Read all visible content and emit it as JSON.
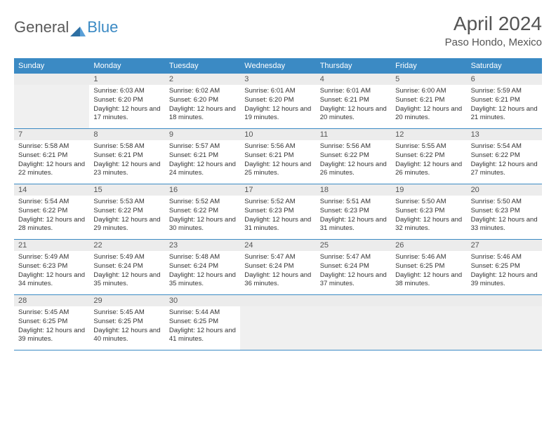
{
  "brand": {
    "part1": "General",
    "part2": "Blue"
  },
  "title": "April 2024",
  "location": "Paso Hondo, Mexico",
  "colors": {
    "header_bg": "#3b8ac4",
    "header_fg": "#ffffff",
    "daynum_bg": "#ececec",
    "text": "#333333",
    "border": "#3b8ac4"
  },
  "day_names": [
    "Sunday",
    "Monday",
    "Tuesday",
    "Wednesday",
    "Thursday",
    "Friday",
    "Saturday"
  ],
  "weeks": [
    [
      null,
      {
        "n": "1",
        "sr": "6:03 AM",
        "ss": "6:20 PM",
        "dl": "12 hours and 17 minutes."
      },
      {
        "n": "2",
        "sr": "6:02 AM",
        "ss": "6:20 PM",
        "dl": "12 hours and 18 minutes."
      },
      {
        "n": "3",
        "sr": "6:01 AM",
        "ss": "6:20 PM",
        "dl": "12 hours and 19 minutes."
      },
      {
        "n": "4",
        "sr": "6:01 AM",
        "ss": "6:21 PM",
        "dl": "12 hours and 20 minutes."
      },
      {
        "n": "5",
        "sr": "6:00 AM",
        "ss": "6:21 PM",
        "dl": "12 hours and 20 minutes."
      },
      {
        "n": "6",
        "sr": "5:59 AM",
        "ss": "6:21 PM",
        "dl": "12 hours and 21 minutes."
      }
    ],
    [
      {
        "n": "7",
        "sr": "5:58 AM",
        "ss": "6:21 PM",
        "dl": "12 hours and 22 minutes."
      },
      {
        "n": "8",
        "sr": "5:58 AM",
        "ss": "6:21 PM",
        "dl": "12 hours and 23 minutes."
      },
      {
        "n": "9",
        "sr": "5:57 AM",
        "ss": "6:21 PM",
        "dl": "12 hours and 24 minutes."
      },
      {
        "n": "10",
        "sr": "5:56 AM",
        "ss": "6:21 PM",
        "dl": "12 hours and 25 minutes."
      },
      {
        "n": "11",
        "sr": "5:56 AM",
        "ss": "6:22 PM",
        "dl": "12 hours and 26 minutes."
      },
      {
        "n": "12",
        "sr": "5:55 AM",
        "ss": "6:22 PM",
        "dl": "12 hours and 26 minutes."
      },
      {
        "n": "13",
        "sr": "5:54 AM",
        "ss": "6:22 PM",
        "dl": "12 hours and 27 minutes."
      }
    ],
    [
      {
        "n": "14",
        "sr": "5:54 AM",
        "ss": "6:22 PM",
        "dl": "12 hours and 28 minutes."
      },
      {
        "n": "15",
        "sr": "5:53 AM",
        "ss": "6:22 PM",
        "dl": "12 hours and 29 minutes."
      },
      {
        "n": "16",
        "sr": "5:52 AM",
        "ss": "6:22 PM",
        "dl": "12 hours and 30 minutes."
      },
      {
        "n": "17",
        "sr": "5:52 AM",
        "ss": "6:23 PM",
        "dl": "12 hours and 31 minutes."
      },
      {
        "n": "18",
        "sr": "5:51 AM",
        "ss": "6:23 PM",
        "dl": "12 hours and 31 minutes."
      },
      {
        "n": "19",
        "sr": "5:50 AM",
        "ss": "6:23 PM",
        "dl": "12 hours and 32 minutes."
      },
      {
        "n": "20",
        "sr": "5:50 AM",
        "ss": "6:23 PM",
        "dl": "12 hours and 33 minutes."
      }
    ],
    [
      {
        "n": "21",
        "sr": "5:49 AM",
        "ss": "6:23 PM",
        "dl": "12 hours and 34 minutes."
      },
      {
        "n": "22",
        "sr": "5:49 AM",
        "ss": "6:24 PM",
        "dl": "12 hours and 35 minutes."
      },
      {
        "n": "23",
        "sr": "5:48 AM",
        "ss": "6:24 PM",
        "dl": "12 hours and 35 minutes."
      },
      {
        "n": "24",
        "sr": "5:47 AM",
        "ss": "6:24 PM",
        "dl": "12 hours and 36 minutes."
      },
      {
        "n": "25",
        "sr": "5:47 AM",
        "ss": "6:24 PM",
        "dl": "12 hours and 37 minutes."
      },
      {
        "n": "26",
        "sr": "5:46 AM",
        "ss": "6:25 PM",
        "dl": "12 hours and 38 minutes."
      },
      {
        "n": "27",
        "sr": "5:46 AM",
        "ss": "6:25 PM",
        "dl": "12 hours and 39 minutes."
      }
    ],
    [
      {
        "n": "28",
        "sr": "5:45 AM",
        "ss": "6:25 PM",
        "dl": "12 hours and 39 minutes."
      },
      {
        "n": "29",
        "sr": "5:45 AM",
        "ss": "6:25 PM",
        "dl": "12 hours and 40 minutes."
      },
      {
        "n": "30",
        "sr": "5:44 AM",
        "ss": "6:25 PM",
        "dl": "12 hours and 41 minutes."
      },
      null,
      null,
      null,
      null
    ]
  ],
  "labels": {
    "sunrise": "Sunrise:",
    "sunset": "Sunset:",
    "daylight": "Daylight:"
  }
}
